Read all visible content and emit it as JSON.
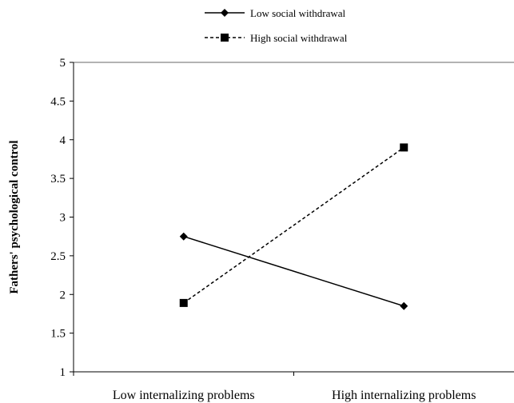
{
  "chart_data": {
    "type": "line",
    "title": "",
    "xlabel": "",
    "ylabel": "Fathers' psychological control",
    "categories": [
      "Low internalizing problems",
      "High internalizing problems"
    ],
    "ylim": [
      1,
      5
    ],
    "yticks": [
      "1",
      "1.5",
      "2",
      "2.5",
      "3",
      "3.5",
      "4",
      "4.5",
      "5"
    ],
    "grid": false,
    "legend_position": "top-center",
    "series": [
      {
        "name": "Low social withdrawal",
        "values": [
          2.75,
          1.85
        ],
        "marker": "diamond",
        "line_style": "solid",
        "color": "#000000"
      },
      {
        "name": "High social withdrawal",
        "values": [
          1.89,
          3.9
        ],
        "marker": "square",
        "line_style": "dashed",
        "color": "#000000"
      }
    ]
  }
}
